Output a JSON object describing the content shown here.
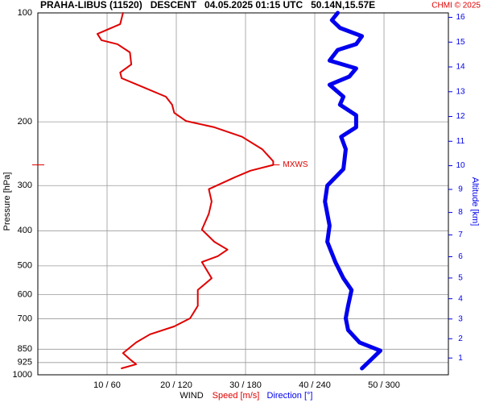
{
  "chart_data": {
    "type": "line",
    "title": "PRAHA-LIBUS (11520)   DESCENT   04.05.2025 01:15 UTC   50.14N,15.57E",
    "credit": "CHMI © 2025",
    "ylabel": "Pressure [hPa]",
    "y2label": "Altitude [km]",
    "xlabel": "WIND",
    "ylim": [
      1000,
      100
    ],
    "log_y": true,
    "yticks": [
      100,
      200,
      300,
      400,
      500,
      600,
      700,
      850,
      925,
      1000
    ],
    "y2ticks": [
      1,
      2,
      3,
      4,
      5,
      6,
      7,
      8,
      9,
      10,
      11,
      12,
      13,
      14,
      15,
      16
    ],
    "xlim": [
      0,
      59.3
    ],
    "x2lim": [
      0,
      356
    ],
    "xticks": [
      {
        "value": 10,
        "label": "10 / 60"
      },
      {
        "value": 20,
        "label": "20 / 120"
      },
      {
        "value": 30,
        "label": "30 / 180"
      },
      {
        "value": 40,
        "label": "40 / 240"
      },
      {
        "value": 50,
        "label": "50 / 300"
      }
    ],
    "grid": true,
    "series": [
      {
        "name": "Speed [m/s]",
        "color": "#e00000",
        "axis": "x",
        "pressure": [
          100,
          107.4,
          114.3,
          119,
          122,
          128.6,
          138.8,
          146.1,
          151.5,
          158,
          170.5,
          179.3,
          188.8,
          198.9,
          207,
          220,
          238,
          257,
          263,
          273,
          285,
          307,
          332,
          359,
          397,
          429,
          451,
          470,
          488,
          541,
          583,
          645,
          698,
          735,
          773,
          814,
          871,
          906,
          935,
          960
        ],
        "values": [
          12.3,
          11.9,
          8.6,
          9.2,
          11.5,
          13.3,
          13.5,
          11.9,
          12.1,
          14.4,
          18.5,
          19.4,
          19.7,
          21.4,
          25.5,
          29.5,
          32.4,
          34,
          34,
          30.7,
          28.4,
          24.7,
          25.1,
          24.7,
          23.7,
          25.5,
          27.4,
          26,
          23.7,
          25.1,
          23.1,
          23.1,
          22,
          19.7,
          16.2,
          14.2,
          12.3,
          13.3,
          14.2,
          12.1
        ]
      },
      {
        "name": "Direction [°]",
        "color": "#0000ee",
        "axis": "x2",
        "pressure": [
          100,
          104.7,
          110,
          116,
          122,
          126.6,
          135.4,
          142.4,
          150,
          158,
          170.5,
          179.3,
          191.8,
          207,
          220,
          238,
          270,
          300,
          332,
          387,
          429,
          488,
          541,
          583,
          645,
          698,
          752,
          814,
          858,
          914,
          960
        ],
        "values": [
          260,
          255,
          262,
          281,
          276,
          260,
          253,
          276,
          270,
          253,
          265,
          262,
          276,
          276,
          263,
          267,
          265,
          251,
          249,
          253,
          251,
          258,
          265,
          272,
          269,
          267,
          269,
          279,
          297,
          288,
          281
        ]
      }
    ],
    "annotation": {
      "text": "MXWS",
      "x": 34,
      "y": 263
    }
  }
}
